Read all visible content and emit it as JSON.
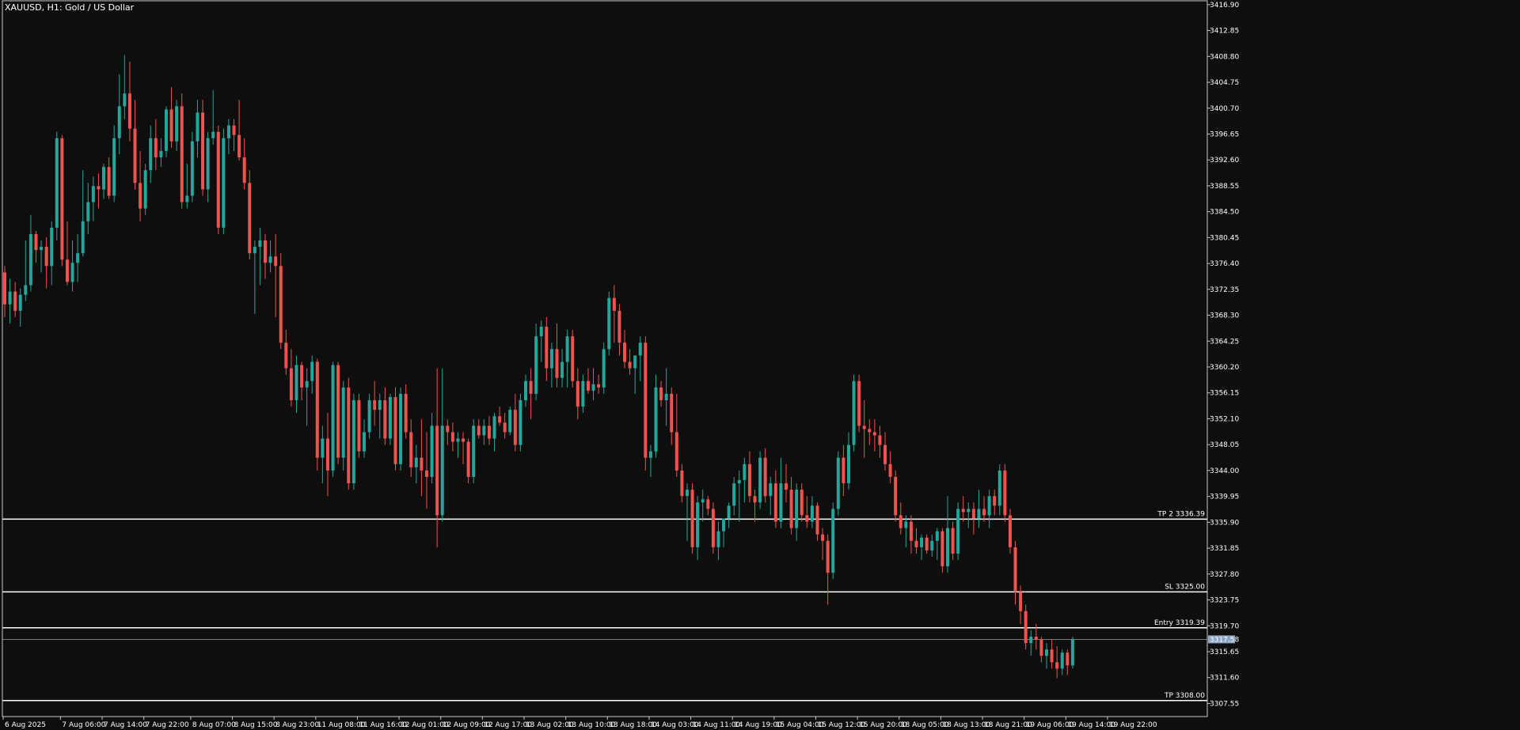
{
  "window": {
    "title": "XAUUSD, H1:  Gold / US Dollar"
  },
  "colors": {
    "background": "#0e0e0e",
    "bull": "#26a69a",
    "bear": "#ef5350",
    "axis": "#c8c8c8",
    "text": "#ffffff",
    "level_line": "#ffffff",
    "price_tag_bg": "#8ea6c4"
  },
  "chart_data": {
    "type": "candlestick",
    "symbol": "XAUUSD",
    "timeframe": "H1",
    "ylim": [
      3305.5,
      3417.5
    ],
    "y_ticks": [
      "3416.90",
      "3412.85",
      "3408.80",
      "3404.75",
      "3400.70",
      "3396.65",
      "3392.60",
      "3388.55",
      "3384.50",
      "3380.45",
      "3376.40",
      "3372.35",
      "3368.30",
      "3364.25",
      "3360.20",
      "3356.15",
      "3352.10",
      "3348.05",
      "3344.00",
      "3339.95",
      "3335.90",
      "3331.85",
      "3327.80",
      "3323.75",
      "3319.70",
      "3315.65",
      "3311.60",
      "3307.55"
    ],
    "x_ticks": [
      {
        "label": "6 Aug 2025",
        "index": 0
      },
      {
        "label": "7 Aug 06:00",
        "index": 11
      },
      {
        "label": "7 Aug 14:00",
        "index": 19
      },
      {
        "label": "7 Aug 22:00",
        "index": 27
      },
      {
        "label": "8 Aug 07:00",
        "index": 36
      },
      {
        "label": "8 Aug 15:00",
        "index": 44
      },
      {
        "label": "8 Aug 23:00",
        "index": 52
      },
      {
        "label": "11 Aug 08:00",
        "index": 60
      },
      {
        "label": "11 Aug 16:00",
        "index": 68
      },
      {
        "label": "12 Aug 01:00",
        "index": 76
      },
      {
        "label": "12 Aug 09:00",
        "index": 84
      },
      {
        "label": "12 Aug 17:00",
        "index": 92
      },
      {
        "label": "13 Aug 02:00",
        "index": 100
      },
      {
        "label": "13 Aug 10:00",
        "index": 108
      },
      {
        "label": "13 Aug 18:00",
        "index": 116
      },
      {
        "label": "14 Aug 03:00",
        "index": 124
      },
      {
        "label": "14 Aug 11:00",
        "index": 132
      },
      {
        "label": "14 Aug 19:00",
        "index": 140
      },
      {
        "label": "15 Aug 04:00",
        "index": 148
      },
      {
        "label": "15 Aug 12:00",
        "index": 156
      },
      {
        "label": "15 Aug 20:00",
        "index": 164
      },
      {
        "label": "18 Aug 05:00",
        "index": 172
      },
      {
        "label": "18 Aug 13:00",
        "index": 180
      },
      {
        "label": "18 Aug 21:00",
        "index": 188
      },
      {
        "label": "19 Aug 06:00",
        "index": 196
      },
      {
        "label": "19 Aug 14:00",
        "index": 204
      },
      {
        "label": "19 Aug 22:00",
        "index": 212
      }
    ],
    "candles": [
      [
        3375.0,
        3376.0,
        3368.0,
        3370.0
      ],
      [
        3370.0,
        3374.0,
        3367.0,
        3372.0
      ],
      [
        3372.0,
        3373.5,
        3368.0,
        3369.0
      ],
      [
        3369.0,
        3372.5,
        3366.5,
        3371.5
      ],
      [
        3371.5,
        3380.0,
        3370.5,
        3373.0
      ],
      [
        3373.0,
        3384.0,
        3372.0,
        3381.0
      ],
      [
        3381.0,
        3381.5,
        3376.5,
        3378.5
      ],
      [
        3378.5,
        3380.0,
        3375.0,
        3379.0
      ],
      [
        3379.0,
        3380.5,
        3372.5,
        3376.0
      ],
      [
        3376.0,
        3383.0,
        3373.0,
        3382.0
      ],
      [
        3382.0,
        3397.0,
        3380.0,
        3396.0
      ],
      [
        3396.0,
        3396.5,
        3376.0,
        3377.0
      ],
      [
        3377.0,
        3383.0,
        3373.0,
        3373.5
      ],
      [
        3373.5,
        3380.0,
        3372.0,
        3376.5
      ],
      [
        3376.5,
        3381.0,
        3373.5,
        3378.0
      ],
      [
        3378.0,
        3391.0,
        3377.5,
        3383.0
      ],
      [
        3383.0,
        3389.0,
        3381.0,
        3386.0
      ],
      [
        3386.0,
        3390.0,
        3383.0,
        3388.5
      ],
      [
        3388.5,
        3390.5,
        3385.0,
        3388.0
      ],
      [
        3388.0,
        3392.0,
        3386.5,
        3391.5
      ],
      [
        3391.5,
        3393.0,
        3386.5,
        3387.0
      ],
      [
        3387.0,
        3398.0,
        3386.0,
        3396.0
      ],
      [
        3396.0,
        3406.0,
        3393.5,
        3401.0
      ],
      [
        3401.0,
        3409.0,
        3399.0,
        3403.0
      ],
      [
        3403.0,
        3408.0,
        3395.5,
        3397.5
      ],
      [
        3397.5,
        3402.0,
        3388.0,
        3389.0
      ],
      [
        3389.0,
        3394.0,
        3383.0,
        3385.0
      ],
      [
        3385.0,
        3392.0,
        3384.0,
        3391.0
      ],
      [
        3391.0,
        3398.0,
        3389.0,
        3396.0
      ],
      [
        3396.0,
        3399.0,
        3391.0,
        3393.0
      ],
      [
        3393.0,
        3396.0,
        3391.5,
        3394.0
      ],
      [
        3394.0,
        3401.0,
        3393.0,
        3400.5
      ],
      [
        3400.5,
        3404.0,
        3394.5,
        3395.5
      ],
      [
        3395.5,
        3402.0,
        3394.0,
        3401.0
      ],
      [
        3401.0,
        3403.0,
        3385.0,
        3386.0
      ],
      [
        3386.0,
        3392.0,
        3385.0,
        3387.0
      ],
      [
        3387.0,
        3397.0,
        3386.0,
        3395.5
      ],
      [
        3395.5,
        3402.0,
        3393.0,
        3400.0
      ],
      [
        3400.0,
        3402.0,
        3387.0,
        3388.0
      ],
      [
        3388.0,
        3397.0,
        3386.0,
        3396.0
      ],
      [
        3396.0,
        3403.5,
        3395.0,
        3397.0
      ],
      [
        3397.0,
        3398.0,
        3381.0,
        3382.0
      ],
      [
        3382.0,
        3397.5,
        3381.0,
        3396.0
      ],
      [
        3396.0,
        3399.0,
        3393.5,
        3398.0
      ],
      [
        3398.0,
        3399.0,
        3394.0,
        3396.5
      ],
      [
        3396.5,
        3402.0,
        3392.5,
        3393.0
      ],
      [
        3393.0,
        3396.0,
        3388.0,
        3389.0
      ],
      [
        3389.0,
        3391.0,
        3377.0,
        3378.0
      ],
      [
        3378.0,
        3380.0,
        3368.5,
        3379.0
      ],
      [
        3379.0,
        3382.0,
        3373.0,
        3380.0
      ],
      [
        3380.0,
        3381.0,
        3374.0,
        3376.5
      ],
      [
        3376.5,
        3380.0,
        3375.0,
        3377.5
      ],
      [
        3377.5,
        3381.0,
        3368.0,
        3376.0
      ],
      [
        3376.0,
        3378.0,
        3363.0,
        3364.0
      ],
      [
        3364.0,
        3366.0,
        3359.0,
        3360.0
      ],
      [
        3360.0,
        3363.0,
        3354.0,
        3355.0
      ],
      [
        3355.0,
        3362.0,
        3353.0,
        3360.5
      ],
      [
        3360.5,
        3361.0,
        3355.0,
        3357.0
      ],
      [
        3357.0,
        3360.0,
        3351.0,
        3358.0
      ],
      [
        3358.0,
        3362.0,
        3356.0,
        3361.0
      ],
      [
        3361.0,
        3361.5,
        3344.0,
        3346.0
      ],
      [
        3346.0,
        3351.0,
        3342.0,
        3349.0
      ],
      [
        3349.0,
        3353.0,
        3340.0,
        3344.0
      ],
      [
        3344.0,
        3361.0,
        3343.0,
        3360.5
      ],
      [
        3360.5,
        3361.0,
        3345.0,
        3346.0
      ],
      [
        3346.0,
        3358.0,
        3344.0,
        3357.0
      ],
      [
        3357.0,
        3358.5,
        3341.0,
        3342.0
      ],
      [
        3342.0,
        3356.0,
        3341.0,
        3355.0
      ],
      [
        3355.0,
        3356.0,
        3346.0,
        3347.0
      ],
      [
        3347.0,
        3352.0,
        3346.0,
        3350.0
      ],
      [
        3350.0,
        3356.0,
        3349.0,
        3355.0
      ],
      [
        3355.0,
        3358.0,
        3351.0,
        3353.5
      ],
      [
        3353.5,
        3356.0,
        3349.0,
        3355.0
      ],
      [
        3355.0,
        3357.0,
        3348.0,
        3349.0
      ],
      [
        3349.0,
        3356.0,
        3348.0,
        3355.5
      ],
      [
        3355.5,
        3357.0,
        3344.0,
        3345.0
      ],
      [
        3345.0,
        3357.0,
        3344.0,
        3356.0
      ],
      [
        3356.0,
        3357.5,
        3349.0,
        3350.0
      ],
      [
        3350.0,
        3352.0,
        3343.0,
        3344.5
      ],
      [
        3344.5,
        3348.0,
        3342.0,
        3346.0
      ],
      [
        3346.0,
        3352.0,
        3340.0,
        3344.0
      ],
      [
        3344.0,
        3350.0,
        3338.0,
        3343.0
      ],
      [
        3343.0,
        3353.0,
        3342.0,
        3351.0
      ],
      [
        3351.0,
        3360.0,
        3332.0,
        3337.0
      ],
      [
        3337.0,
        3360.0,
        3336.0,
        3351.0
      ],
      [
        3351.0,
        3352.0,
        3348.0,
        3350.0
      ],
      [
        3350.0,
        3351.5,
        3347.0,
        3348.5
      ],
      [
        3348.5,
        3350.0,
        3346.0,
        3349.0
      ],
      [
        3349.0,
        3350.0,
        3345.0,
        3348.5
      ],
      [
        3348.5,
        3349.0,
        3342.0,
        3343.0
      ],
      [
        3343.0,
        3352.0,
        3342.0,
        3351.0
      ],
      [
        3351.0,
        3352.0,
        3349.0,
        3349.5
      ],
      [
        3349.5,
        3352.0,
        3348.0,
        3351.0
      ],
      [
        3351.0,
        3352.5,
        3348.0,
        3349.0
      ],
      [
        3349.0,
        3353.0,
        3347.0,
        3352.5
      ],
      [
        3352.5,
        3354.0,
        3351.0,
        3351.5
      ],
      [
        3351.5,
        3353.0,
        3349.0,
        3350.0
      ],
      [
        3350.0,
        3354.0,
        3349.5,
        3353.5
      ],
      [
        3353.5,
        3356.0,
        3347.0,
        3348.0
      ],
      [
        3348.0,
        3356.0,
        3347.0,
        3355.0
      ],
      [
        3355.0,
        3359.0,
        3354.0,
        3358.0
      ],
      [
        3358.0,
        3360.0,
        3352.0,
        3356.0
      ],
      [
        3356.0,
        3367.0,
        3355.0,
        3365.0
      ],
      [
        3365.0,
        3367.5,
        3361.0,
        3366.5
      ],
      [
        3366.5,
        3368.0,
        3358.0,
        3360.0
      ],
      [
        3360.0,
        3364.0,
        3357.0,
        3363.0
      ],
      [
        3363.0,
        3367.0,
        3357.0,
        3358.5
      ],
      [
        3358.5,
        3363.0,
        3357.0,
        3361.0
      ],
      [
        3361.0,
        3366.0,
        3357.0,
        3365.0
      ],
      [
        3365.0,
        3366.0,
        3357.0,
        3358.0
      ],
      [
        3358.0,
        3360.0,
        3352.0,
        3354.0
      ],
      [
        3354.0,
        3359.0,
        3353.0,
        3358.0
      ],
      [
        3358.0,
        3360.0,
        3356.0,
        3356.5
      ],
      [
        3356.5,
        3360.0,
        3355.0,
        3357.5
      ],
      [
        3357.5,
        3359.0,
        3356.0,
        3357.0
      ],
      [
        3357.0,
        3364.0,
        3356.0,
        3363.0
      ],
      [
        3363.0,
        3372.0,
        3362.0,
        3371.0
      ],
      [
        3371.0,
        3373.0,
        3364.0,
        3369.0
      ],
      [
        3369.0,
        3370.0,
        3362.0,
        3364.0
      ],
      [
        3364.0,
        3366.0,
        3360.0,
        3361.0
      ],
      [
        3361.0,
        3363.0,
        3359.0,
        3360.0
      ],
      [
        3360.0,
        3362.0,
        3356.0,
        3362.0
      ],
      [
        3362.0,
        3365.0,
        3358.0,
        3364.0
      ],
      [
        3364.0,
        3365.0,
        3344.0,
        3346.0
      ],
      [
        3346.0,
        3348.0,
        3343.0,
        3347.0
      ],
      [
        3347.0,
        3359.0,
        3346.0,
        3357.0
      ],
      [
        3357.0,
        3358.0,
        3354.0,
        3355.0
      ],
      [
        3355.0,
        3360.0,
        3351.0,
        3356.0
      ],
      [
        3356.0,
        3357.0,
        3348.0,
        3350.0
      ],
      [
        3350.0,
        3356.0,
        3343.0,
        3344.0
      ],
      [
        3344.0,
        3345.0,
        3339.0,
        3340.0
      ],
      [
        3340.0,
        3342.0,
        3333.0,
        3341.0
      ],
      [
        3341.0,
        3342.0,
        3331.0,
        3332.0
      ],
      [
        3332.0,
        3340.0,
        3330.0,
        3339.0
      ],
      [
        3339.0,
        3341.0,
        3336.0,
        3339.5
      ],
      [
        3339.5,
        3340.0,
        3337.0,
        3338.0
      ],
      [
        3338.0,
        3339.0,
        3331.0,
        3332.0
      ],
      [
        3332.0,
        3336.0,
        3330.0,
        3334.5
      ],
      [
        3334.5,
        3336.0,
        3332.0,
        3336.5
      ],
      [
        3336.5,
        3339.0,
        3335.0,
        3338.5
      ],
      [
        3338.5,
        3343.0,
        3337.0,
        3342.0
      ],
      [
        3342.0,
        3344.0,
        3336.0,
        3342.5
      ],
      [
        3342.5,
        3346.0,
        3339.0,
        3345.0
      ],
      [
        3345.0,
        3347.0,
        3339.0,
        3340.0
      ],
      [
        3340.0,
        3341.0,
        3336.0,
        3339.0
      ],
      [
        3339.0,
        3347.0,
        3338.0,
        3346.0
      ],
      [
        3346.0,
        3347.5,
        3339.0,
        3340.0
      ],
      [
        3340.0,
        3343.0,
        3337.0,
        3342.0
      ],
      [
        3342.0,
        3344.0,
        3335.0,
        3336.0
      ],
      [
        3336.0,
        3346.0,
        3335.0,
        3342.0
      ],
      [
        3342.0,
        3345.0,
        3339.0,
        3341.0
      ],
      [
        3341.0,
        3343.0,
        3334.0,
        3335.0
      ],
      [
        3335.0,
        3342.0,
        3333.0,
        3341.0
      ],
      [
        3341.0,
        3342.0,
        3336.0,
        3337.0
      ],
      [
        3337.0,
        3340.0,
        3335.0,
        3336.0
      ],
      [
        3336.0,
        3340.0,
        3335.0,
        3338.5
      ],
      [
        3338.5,
        3339.0,
        3333.0,
        3334.0
      ],
      [
        3334.0,
        3335.0,
        3330.0,
        3333.0
      ],
      [
        3333.0,
        3334.0,
        3323.0,
        3328.0
      ],
      [
        3328.0,
        3339.0,
        3327.0,
        3338.0
      ],
      [
        3338.0,
        3347.0,
        3337.0,
        3346.0
      ],
      [
        3346.0,
        3348.0,
        3340.0,
        3342.0
      ],
      [
        3342.0,
        3350.0,
        3341.0,
        3348.0
      ],
      [
        3348.0,
        3359.0,
        3347.0,
        3358.0
      ],
      [
        3358.0,
        3359.0,
        3350.0,
        3351.0
      ],
      [
        3351.0,
        3355.0,
        3346.0,
        3350.5
      ],
      [
        3350.5,
        3352.0,
        3348.0,
        3350.0
      ],
      [
        3350.0,
        3352.0,
        3347.0,
        3349.5
      ],
      [
        3349.5,
        3351.0,
        3346.0,
        3348.0
      ],
      [
        3348.0,
        3350.0,
        3344.0,
        3345.0
      ],
      [
        3345.0,
        3347.0,
        3342.0,
        3343.0
      ],
      [
        3343.0,
        3344.0,
        3336.0,
        3337.0
      ],
      [
        3337.0,
        3339.0,
        3334.0,
        3335.0
      ],
      [
        3335.0,
        3337.0,
        3332.0,
        3336.0
      ],
      [
        3336.0,
        3337.0,
        3331.0,
        3333.0
      ],
      [
        3333.0,
        3335.0,
        3331.0,
        3332.0
      ],
      [
        3332.0,
        3334.0,
        3330.0,
        3333.5
      ],
      [
        3333.5,
        3334.0,
        3331.0,
        3331.5
      ],
      [
        3331.5,
        3334.0,
        3330.5,
        3333.0
      ],
      [
        3333.0,
        3335.0,
        3330.0,
        3334.5
      ],
      [
        3334.5,
        3335.0,
        3328.0,
        3329.0
      ],
      [
        3329.0,
        3340.0,
        3328.0,
        3335.0
      ],
      [
        3335.0,
        3336.0,
        3330.0,
        3331.0
      ],
      [
        3331.0,
        3339.0,
        3330.0,
        3338.0
      ],
      [
        3338.0,
        3340.0,
        3336.0,
        3337.5
      ],
      [
        3337.5,
        3339.0,
        3335.0,
        3338.0
      ],
      [
        3338.0,
        3339.0,
        3334.0,
        3336.5
      ],
      [
        3336.5,
        3341.0,
        3335.0,
        3338.0
      ],
      [
        3338.0,
        3340.0,
        3336.0,
        3337.0
      ],
      [
        3337.0,
        3341.0,
        3335.0,
        3340.0
      ],
      [
        3340.0,
        3341.0,
        3337.0,
        3338.5
      ],
      [
        3338.5,
        3345.0,
        3337.0,
        3344.0
      ],
      [
        3344.0,
        3345.0,
        3336.0,
        3337.0
      ],
      [
        3337.0,
        3338.0,
        3331.0,
        3332.0
      ],
      [
        3332.0,
        3333.0,
        3323.0,
        3325.0
      ],
      [
        3325.0,
        3326.0,
        3320.0,
        3322.0
      ],
      [
        3322.0,
        3323.0,
        3316.0,
        3317.0
      ],
      [
        3317.0,
        3319.0,
        3315.0,
        3318.0
      ],
      [
        3318.0,
        3320.0,
        3316.0,
        3317.5
      ],
      [
        3317.5,
        3318.0,
        3314.0,
        3315.0
      ],
      [
        3315.0,
        3317.0,
        3313.0,
        3316.0
      ],
      [
        3316.0,
        3317.5,
        3313.0,
        3314.0
      ],
      [
        3314.0,
        3316.5,
        3311.5,
        3313.0
      ],
      [
        3313.0,
        3316.0,
        3312.0,
        3315.5
      ],
      [
        3315.5,
        3316.0,
        3312.0,
        3313.5
      ],
      [
        3313.5,
        3318.0,
        3313.0,
        3317.6
      ]
    ],
    "levels": [
      {
        "label": "TP 2 3336.39",
        "price": 3336.39
      },
      {
        "label": "SL 3325.00",
        "price": 3325.0
      },
      {
        "label": "Entry 3319.39",
        "price": 3319.39
      },
      {
        "label": "TP 3308.00",
        "price": 3308.0
      }
    ],
    "current_price": {
      "label": "3317.58",
      "price": 3317.58
    }
  }
}
